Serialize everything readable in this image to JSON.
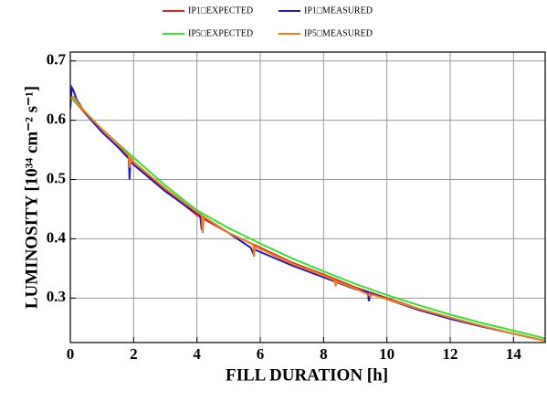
{
  "chart_data": {
    "type": "line",
    "xlabel": "FILL DURATION [h]",
    "ylabel": "LUMINOSITY [10³⁴ cm⁻² s⁻¹]",
    "xlim": [
      0,
      15
    ],
    "ylim": [
      0.225,
      0.715
    ],
    "xticks": [
      0,
      2,
      4,
      6,
      8,
      10,
      12,
      14
    ],
    "yticks": [
      0.3,
      0.4,
      0.5,
      0.6,
      0.7
    ],
    "grid": true,
    "series": [
      {
        "name": "IP1□EXPECTED",
        "color": "#e8201c",
        "x": [
          0,
          1,
          2,
          3,
          4,
          5,
          6,
          7,
          8,
          9,
          10,
          11,
          12,
          13,
          14,
          15
        ],
        "values": [
          0.64,
          0.58,
          0.53,
          0.482,
          0.44,
          0.41,
          0.385,
          0.36,
          0.34,
          0.318,
          0.3,
          0.282,
          0.267,
          0.253,
          0.24,
          0.228
        ]
      },
      {
        "name": "IP1□MEASURED",
        "color": "#1a1ad0",
        "x": [
          0,
          0.05,
          0.1,
          0.2,
          0.5,
          1,
          1.5,
          1.85,
          1.87,
          1.9,
          2,
          3,
          3.8,
          4.1,
          4.15,
          4.2,
          5,
          5.7,
          5.78,
          5.8,
          5.9,
          7,
          8,
          9,
          9.4,
          9.43,
          9.5,
          10,
          11,
          12,
          13,
          14,
          15
        ],
        "values": [
          0.62,
          0.655,
          0.65,
          0.635,
          0.61,
          0.58,
          0.555,
          0.535,
          0.5,
          0.53,
          0.525,
          0.48,
          0.45,
          0.44,
          0.415,
          0.437,
          0.41,
          0.385,
          0.375,
          0.383,
          0.38,
          0.355,
          0.335,
          0.315,
          0.31,
          0.295,
          0.308,
          0.298,
          0.28,
          0.265,
          0.252,
          0.24,
          0.228
        ]
      },
      {
        "name": "IP5□EXPECTED",
        "color": "#2ee82e",
        "x": [
          0,
          1,
          2,
          3,
          4,
          5,
          6,
          7,
          8,
          9,
          10,
          11,
          12,
          13,
          14,
          15
        ],
        "values": [
          0.64,
          0.585,
          0.537,
          0.49,
          0.448,
          0.418,
          0.392,
          0.367,
          0.345,
          0.324,
          0.305,
          0.288,
          0.272,
          0.258,
          0.245,
          0.232
        ]
      },
      {
        "name": "IP5□MEASURED",
        "color": "#f57f17",
        "x": [
          0,
          0.1,
          0.3,
          0.5,
          1,
          1.5,
          1.85,
          1.88,
          1.92,
          2,
          3,
          4,
          4.15,
          4.18,
          4.22,
          5,
          5.78,
          5.8,
          5.83,
          7,
          8,
          8.35,
          8.38,
          8.42,
          9,
          9.45,
          9.48,
          9.52,
          10,
          11,
          12,
          13,
          14,
          15
        ],
        "values": [
          0.635,
          0.64,
          0.625,
          0.612,
          0.585,
          0.56,
          0.54,
          0.52,
          0.537,
          0.53,
          0.485,
          0.445,
          0.44,
          0.41,
          0.437,
          0.41,
          0.39,
          0.37,
          0.387,
          0.358,
          0.338,
          0.33,
          0.32,
          0.328,
          0.316,
          0.305,
          0.302,
          0.306,
          0.298,
          0.282,
          0.267,
          0.253,
          0.24,
          0.228
        ]
      }
    ]
  }
}
